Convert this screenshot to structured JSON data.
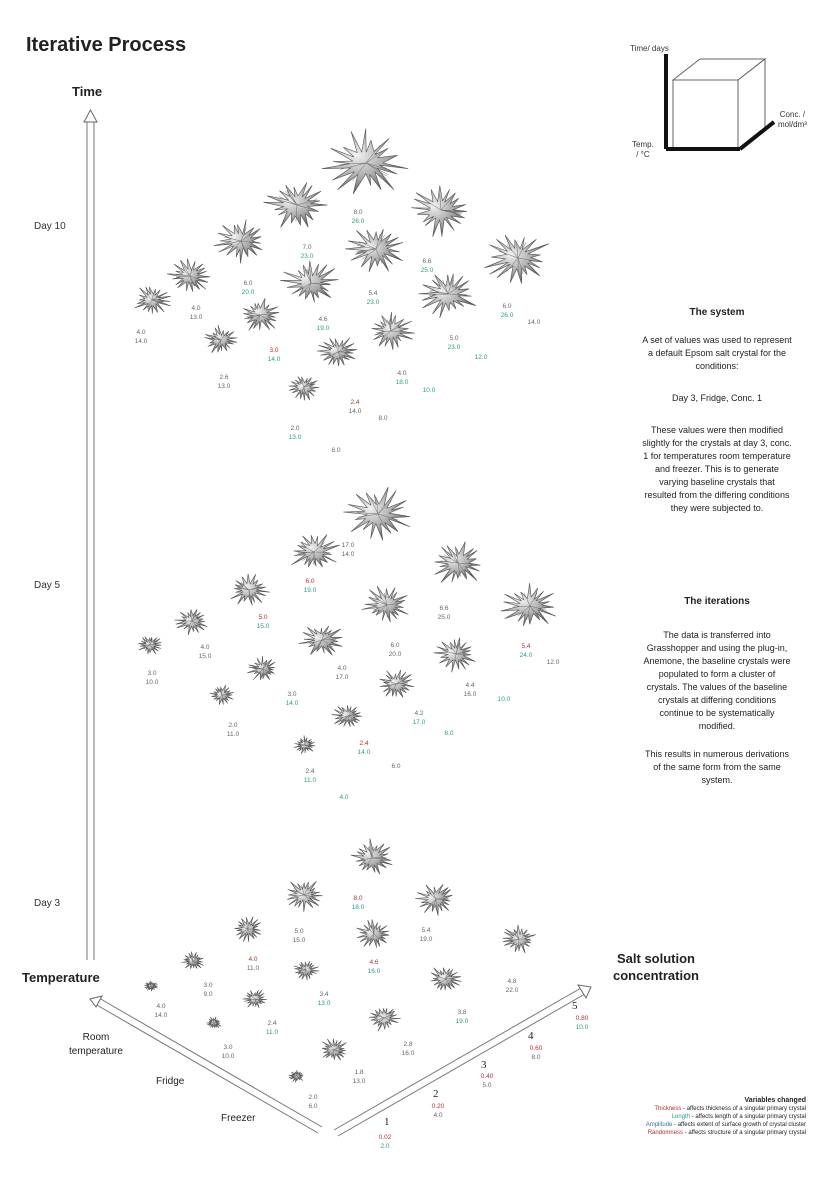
{
  "title": "Iterative Process",
  "axes": {
    "time": "Time",
    "temperature": "Temperature",
    "salt_line1": "Salt solution",
    "salt_line2": "concentration",
    "room_line1": "Room",
    "room_line2": "temperature",
    "fridge": "Fridge",
    "freezer": "Freezer",
    "days": [
      "Day 10",
      "Day 5",
      "Day 3"
    ]
  },
  "cube": {
    "time": "Time/ days",
    "conc_line1": "Conc. /",
    "conc_line2": "mol/dm³",
    "temp_line1": "Temp.",
    "temp_line2": "/ °C"
  },
  "system": {
    "heading": "The system",
    "p1": "A set of values was used to represent a default Epsom salt crystal for the conditions:",
    "p2": "Day 3, Fridge, Conc. 1",
    "p3": "These values were then modified slightly for the crystals at day 3, conc. 1 for temperatures room temperature and freezer. This is to generate varying baseline crystals that resulted from the differing conditions they were subjected to."
  },
  "iterations": {
    "heading": "The iterations",
    "p1": "The data is transferred into Grasshopper and using the plug-in, Anemone, the baseline crystals were populated to form a cluster of crystals. The values of the baseline crystals at differing conditions continue to be systematically modified.",
    "p2": "This results in numerous derivations of the same form from the same system."
  },
  "concentration": [
    "1",
    "2",
    "3",
    "4",
    "5"
  ],
  "day3": [
    [
      "0.02",
      "2.0"
    ],
    [
      "0.20",
      "4.0"
    ],
    [
      "0.40",
      "5.0"
    ],
    [
      "0.60",
      "8.0"
    ],
    [
      "0.80",
      "10.0"
    ],
    [
      "2.0",
      "6.0"
    ],
    [
      "1.8",
      "13.0"
    ],
    [
      "2.8",
      "16.0"
    ],
    [
      "3.8",
      "19.0"
    ],
    [
      "4.8",
      "22.0"
    ],
    [
      "3.0",
      "10.0"
    ],
    [
      "2.4",
      "11.0"
    ],
    [
      "3.4",
      "13.0"
    ],
    [
      "4.6",
      "16.0"
    ],
    [
      "5.4",
      "19.0"
    ],
    [
      "4.0",
      "14.0"
    ],
    [
      "3.0",
      "9.0"
    ],
    [
      "4.0",
      "11.0"
    ],
    [
      "5.0",
      "15.0"
    ],
    [
      "8.0",
      "18.0"
    ]
  ],
  "day5": [
    [
      "17.0",
      "14.0"
    ],
    [
      "6.0",
      "19.0"
    ],
    [
      "6.6",
      "25.0"
    ],
    [
      "5.0",
      "15.0"
    ],
    [
      "6.0",
      "20.0"
    ],
    [
      "5.4",
      "24.0"
    ],
    [
      "4.0",
      "15.0"
    ],
    [
      "4.0",
      "17.0"
    ],
    [
      "4.4",
      "16.0"
    ],
    [
      "3.0",
      "10.0"
    ],
    [
      "3.0",
      "14.0"
    ],
    [
      "4.2",
      "17.0"
    ],
    [
      "2.0",
      "11.0"
    ],
    [
      "2.4",
      "14.0"
    ],
    [
      "2.4",
      "11.0"
    ]
  ],
  "day5_single": [
    "12.0",
    "10.0",
    "8.0",
    "6.0",
    "4.0"
  ],
  "day10": [
    [
      "8.0",
      "26.0"
    ],
    [
      "7.0",
      "23.0"
    ],
    [
      "6.6",
      "25.0"
    ],
    [
      "6.0",
      "20.0"
    ],
    [
      "5.4",
      "23.0"
    ],
    [
      "6.0",
      "26.0"
    ],
    [
      "4.0",
      "13.0"
    ],
    [
      "4.6",
      "19.0"
    ],
    [
      "5.0",
      "23.0"
    ],
    [
      "4.0",
      "14.0"
    ],
    [
      "3.0",
      "14.0"
    ],
    [
      "4.0",
      "18.0"
    ],
    [
      "2.6",
      "13.0"
    ],
    [
      "2.4",
      "14.0"
    ],
    [
      "2.0",
      "13.0"
    ]
  ],
  "day10_single": [
    "14.0",
    "12.0",
    "10.0",
    "8.0",
    "6.0"
  ],
  "legend": {
    "heading": "Variables changed",
    "rows": [
      {
        "term": "Thickness",
        "desc": " - affects thickness of a singular primary crystal",
        "color": "#b3312b"
      },
      {
        "term": "Length",
        "desc": " - affects length of a singular primary crystal",
        "color": "#2a9d86"
      },
      {
        "term": "Amplitude",
        "desc": " - affects extent of surface growth of crystal cluster",
        "color": "#3c6fa8"
      },
      {
        "term": "Randomness",
        "desc": " - affects structure of a singular primary crystal",
        "color": "#b3312b"
      }
    ]
  }
}
